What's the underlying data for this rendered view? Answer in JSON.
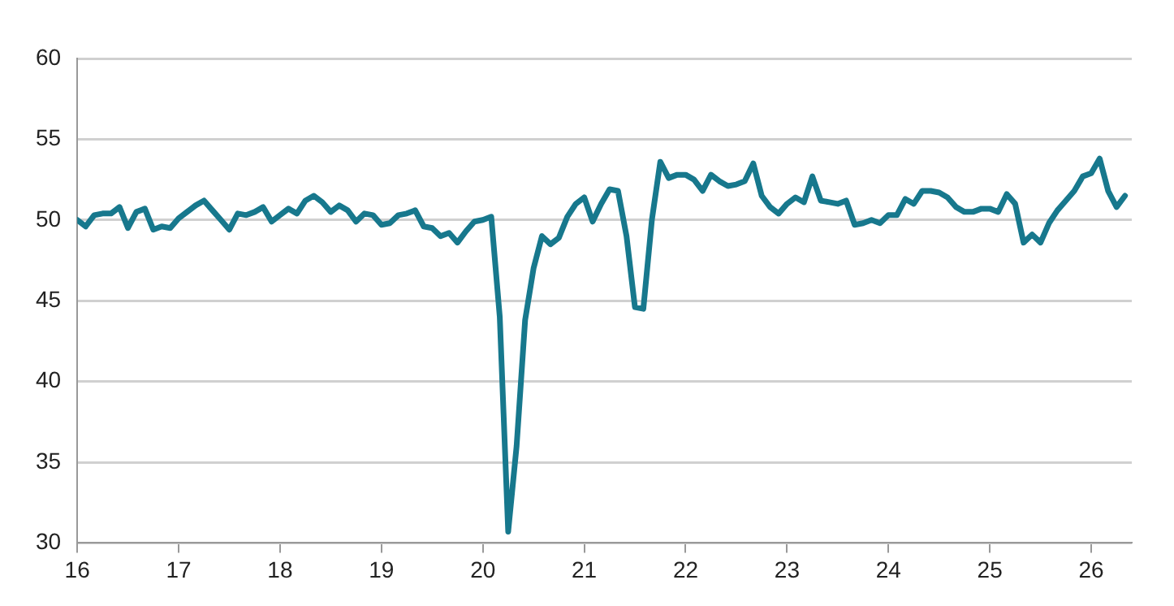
{
  "chart_data": {
    "type": "line",
    "color": "#17788d",
    "x": [
      16,
      16.083,
      16.167,
      16.25,
      16.333,
      16.417,
      16.5,
      16.583,
      16.667,
      16.75,
      16.833,
      16.917,
      17,
      17.083,
      17.167,
      17.25,
      17.333,
      17.417,
      17.5,
      17.583,
      17.667,
      17.75,
      17.833,
      17.917,
      18,
      18.083,
      18.167,
      18.25,
      18.333,
      18.417,
      18.5,
      18.583,
      18.667,
      18.75,
      18.833,
      18.917,
      19,
      19.083,
      19.167,
      19.25,
      19.333,
      19.417,
      19.5,
      19.583,
      19.667,
      19.75,
      19.833,
      19.917,
      20,
      20.083,
      20.167,
      20.25,
      20.333,
      20.417,
      20.5,
      20.583,
      20.667,
      20.75,
      20.833,
      20.917,
      21,
      21.083,
      21.167,
      21.25,
      21.333,
      21.417,
      21.5,
      21.583,
      21.667,
      21.75,
      21.833,
      21.917,
      22,
      22.083,
      22.167,
      22.25,
      22.333,
      22.417,
      22.5,
      22.583,
      22.667,
      22.75,
      22.833,
      22.917,
      23,
      23.083,
      23.167,
      23.25,
      23.333,
      23.417,
      23.5,
      23.583,
      23.667,
      23.75,
      23.833,
      23.917,
      24,
      24.083,
      24.167,
      24.25,
      24.333,
      24.417,
      24.5,
      24.583,
      24.667,
      24.75,
      24.833,
      24.917,
      25,
      25.083,
      25.167,
      25.25,
      25.333,
      25.417,
      25.5,
      25.583,
      25.667,
      25.75,
      25.833,
      25.917,
      26,
      26.083,
      26.167,
      26.25,
      26.333
    ],
    "values": [
      50.0,
      49.6,
      50.3,
      50.4,
      50.4,
      50.8,
      49.5,
      50.5,
      50.7,
      49.4,
      49.6,
      49.5,
      50.1,
      50.5,
      50.9,
      51.2,
      50.6,
      50.0,
      49.4,
      50.4,
      50.3,
      50.5,
      50.8,
      49.9,
      50.3,
      50.7,
      50.4,
      51.2,
      51.5,
      51.1,
      50.5,
      50.9,
      50.6,
      49.9,
      50.4,
      50.3,
      49.7,
      49.8,
      50.3,
      50.4,
      50.6,
      49.6,
      49.5,
      49.0,
      49.2,
      48.6,
      49.3,
      49.9,
      50.0,
      50.2,
      44.0,
      30.7,
      36.0,
      43.8,
      47.0,
      49.0,
      48.5,
      48.9,
      50.2,
      51.0,
      51.4,
      49.9,
      51.0,
      51.9,
      51.8,
      49.0,
      44.6,
      44.5,
      50.0,
      53.6,
      52.6,
      52.8,
      52.8,
      52.5,
      51.8,
      52.8,
      52.4,
      52.1,
      52.2,
      52.4,
      53.5,
      51.5,
      50.8,
      50.4,
      51.0,
      51.4,
      51.1,
      52.7,
      51.2,
      51.1,
      51.0,
      51.2,
      49.7,
      49.8,
      50.0,
      49.8,
      50.3,
      50.3,
      51.3,
      51.0,
      51.8,
      51.8,
      51.7,
      51.4,
      50.8,
      50.5,
      50.5,
      50.7,
      50.7,
      50.5,
      51.6,
      51.0,
      48.6,
      49.1,
      48.6,
      49.8,
      50.6,
      51.2,
      51.8,
      52.7,
      52.9,
      53.8,
      51.8,
      50.8,
      51.5
    ],
    "xlim": [
      16,
      26.4
    ],
    "xticks": [
      16,
      17,
      18,
      19,
      20,
      21,
      22,
      23,
      24,
      25,
      26
    ],
    "ylim": [
      30,
      60
    ],
    "yticks": [
      30,
      35,
      40,
      45,
      50,
      55,
      60
    ],
    "grid": "y",
    "legend": false,
    "marker": "none",
    "line_style": "solid"
  }
}
